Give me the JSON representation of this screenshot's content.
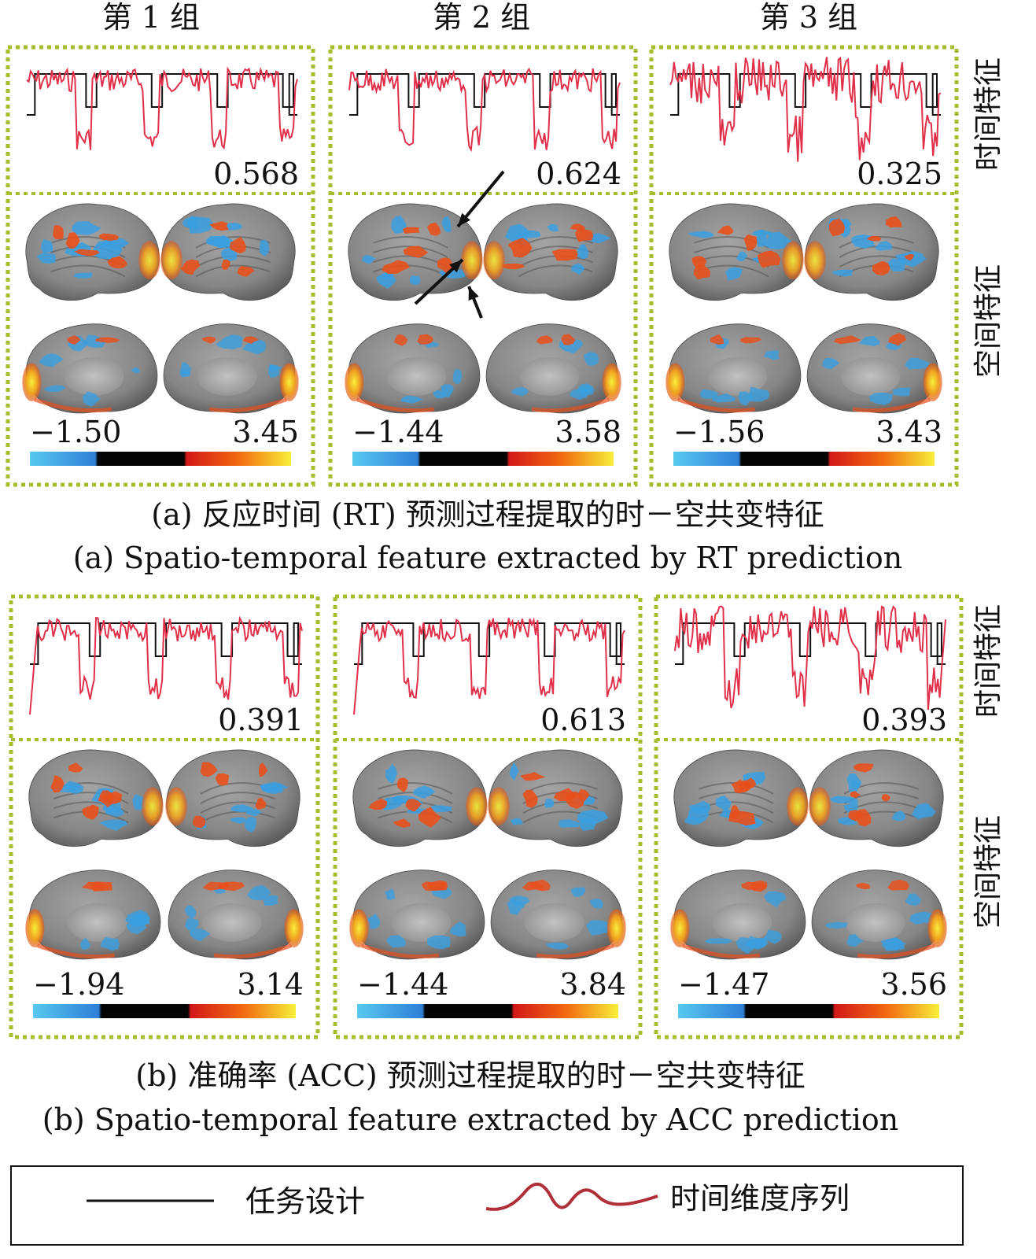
{
  "column_headers": [
    "第 1 组",
    "第 2 组",
    "第 3 组"
  ],
  "row_labels": {
    "temporal": "时间特征",
    "spatial": "空间特征"
  },
  "panel_a": {
    "caption_cn": "(a) 反应时间 (RT) 预测过程提取的时－空共变特征",
    "caption_en": "(a) Spatio-temporal feature extracted by RT prediction",
    "groups": [
      {
        "correlation": "0.568",
        "cbar_min": "−1.50",
        "cbar_max": "3.45"
      },
      {
        "correlation": "0.624",
        "cbar_min": "−1.44",
        "cbar_max": "3.58"
      },
      {
        "correlation": "0.325",
        "cbar_min": "−1.56",
        "cbar_max": "3.43"
      }
    ]
  },
  "panel_b": {
    "caption_cn": "(b) 准确率 (ACC) 预测过程提取的时－空共变特征",
    "caption_en": "(b) Spatio-temporal feature extracted by ACC prediction",
    "groups": [
      {
        "correlation": "0.391",
        "cbar_min": "−1.94",
        "cbar_max": "3.14"
      },
      {
        "correlation": "0.613",
        "cbar_min": "−1.44",
        "cbar_max": "3.84"
      },
      {
        "correlation": "0.393",
        "cbar_min": "−1.47",
        "cbar_max": "3.56"
      }
    ]
  },
  "legend": {
    "task_design": "任务设计",
    "time_series": "时间维度序列"
  },
  "colors": {
    "frame": "#a8bd2c",
    "task_line": "#111111",
    "series_line": "#e0304a",
    "brain_gray": "#8a8a8a",
    "blue": "#3a9fe0",
    "orange": "#e8501c",
    "yellow": "#f0d020",
    "legend_wave": "#b0303a"
  }
}
